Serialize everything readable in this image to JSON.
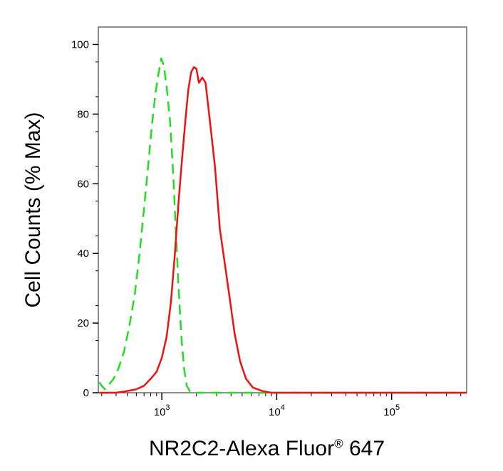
{
  "chart_data": {
    "type": "line",
    "title": "",
    "xlabel_main": "NR2C2-Alexa Fluor",
    "xlabel_registered": "®",
    "xlabel_suffix": " 647",
    "ylabel": "Cell Counts (% Max)",
    "x_scale": "log",
    "xlim": [
      280,
      450000
    ],
    "ylim": [
      0,
      105
    ],
    "x_ticks": [
      {
        "value": 1000,
        "base": "10",
        "exp": "3"
      },
      {
        "value": 10000,
        "base": "10",
        "exp": "4"
      },
      {
        "value": 100000,
        "base": "10",
        "exp": "5"
      }
    ],
    "y_ticks": [
      {
        "value": 0,
        "label": "0"
      },
      {
        "value": 20,
        "label": "20"
      },
      {
        "value": 40,
        "label": "40"
      },
      {
        "value": 60,
        "label": "60"
      },
      {
        "value": 80,
        "label": "80"
      },
      {
        "value": 100,
        "label": "100"
      }
    ],
    "grid": false,
    "series": [
      {
        "color": "#22dd22",
        "style": "dashed",
        "points": [
          [
            285,
            3
          ],
          [
            300,
            2
          ],
          [
            320,
            1
          ],
          [
            340,
            2
          ],
          [
            380,
            4
          ],
          [
            420,
            7
          ],
          [
            470,
            12
          ],
          [
            520,
            19
          ],
          [
            580,
            28
          ],
          [
            640,
            40
          ],
          [
            700,
            53
          ],
          [
            760,
            65
          ],
          [
            820,
            77
          ],
          [
            880,
            86
          ],
          [
            940,
            92
          ],
          [
            990,
            96
          ],
          [
            1040,
            94
          ],
          [
            1100,
            88
          ],
          [
            1180,
            78
          ],
          [
            1260,
            62
          ],
          [
            1330,
            45
          ],
          [
            1400,
            30
          ],
          [
            1480,
            16
          ],
          [
            1560,
            7
          ],
          [
            1650,
            2
          ],
          [
            1750,
            0.5
          ],
          [
            1900,
            0
          ],
          [
            3000,
            0
          ],
          [
            10000,
            0
          ],
          [
            450000,
            0
          ]
        ]
      },
      {
        "color": "#ee1111",
        "style": "solid",
        "points": [
          [
            285,
            0
          ],
          [
            400,
            0
          ],
          [
            500,
            0.5
          ],
          [
            600,
            1
          ],
          [
            700,
            2
          ],
          [
            800,
            4
          ],
          [
            900,
            6
          ],
          [
            1000,
            10
          ],
          [
            1100,
            16
          ],
          [
            1200,
            26
          ],
          [
            1300,
            40
          ],
          [
            1400,
            55
          ],
          [
            1500,
            67
          ],
          [
            1600,
            78
          ],
          [
            1700,
            87
          ],
          [
            1800,
            92
          ],
          [
            1900,
            93.5
          ],
          [
            2000,
            93
          ],
          [
            2100,
            89
          ],
          [
            2250,
            90.5
          ],
          [
            2400,
            89
          ],
          [
            2600,
            79
          ],
          [
            2900,
            65
          ],
          [
            3200,
            47
          ],
          [
            3500,
            38
          ],
          [
            3900,
            27
          ],
          [
            4300,
            17
          ],
          [
            4800,
            9
          ],
          [
            5400,
            4
          ],
          [
            6200,
            1.5
          ],
          [
            7500,
            0.5
          ],
          [
            9000,
            0
          ],
          [
            20000,
            0
          ],
          [
            100000,
            0
          ],
          [
            450000,
            0
          ]
        ]
      }
    ]
  }
}
